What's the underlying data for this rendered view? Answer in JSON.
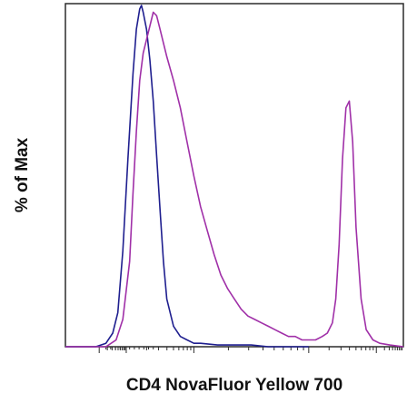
{
  "chart_data": {
    "type": "line",
    "subtype": "flow-cytometry-histogram",
    "xlabel": "CD4 NovaFluor Yellow 700",
    "ylabel": "% of Max",
    "xlim": [
      0,
      100
    ],
    "ylim": [
      0,
      100
    ],
    "x_scale": "biexponential",
    "tick_labels_visible": false,
    "grid": false,
    "legend": "none",
    "series": [
      {
        "color": "#1f1f8f",
        "x": [
          0,
          9,
          12,
          14,
          15.5,
          17,
          18.5,
          20,
          21,
          22,
          22.5,
          23,
          24,
          25,
          26,
          27,
          28,
          29,
          30,
          32,
          34,
          36,
          38,
          40,
          45,
          50,
          55,
          60,
          65,
          70,
          72
        ],
        "y": [
          0,
          0,
          1,
          4,
          10,
          28,
          55,
          80,
          93,
          99,
          100,
          98,
          93,
          84,
          72,
          56,
          40,
          25,
          14,
          6,
          3,
          2,
          1,
          1,
          0.5,
          0.5,
          0.5,
          0,
          0,
          0,
          0
        ]
      },
      {
        "color": "#a030a8",
        "x": [
          0,
          12,
          15,
          17,
          19,
          20,
          21,
          22,
          23,
          24,
          25,
          26,
          27,
          28,
          29,
          30,
          32,
          34,
          36,
          38,
          40,
          42,
          44,
          46,
          48,
          50,
          52,
          54,
          56,
          58,
          60,
          62,
          64,
          66,
          68,
          70,
          72,
          74,
          76,
          77.5,
          79,
          80,
          81,
          82,
          83,
          84,
          85,
          86,
          87.5,
          89,
          91,
          93,
          96,
          100
        ],
        "y": [
          0,
          0,
          2,
          8,
          25,
          45,
          63,
          78,
          86,
          90,
          94,
          98,
          97,
          93,
          89,
          85,
          78,
          70,
          60,
          50,
          41,
          34,
          27,
          21,
          17,
          14,
          11,
          9,
          8,
          7,
          6,
          5,
          4,
          3,
          3,
          2,
          2,
          2,
          3,
          4,
          7,
          14,
          30,
          55,
          70,
          72,
          60,
          35,
          14,
          5,
          2,
          1,
          0.5,
          0
        ]
      }
    ]
  }
}
